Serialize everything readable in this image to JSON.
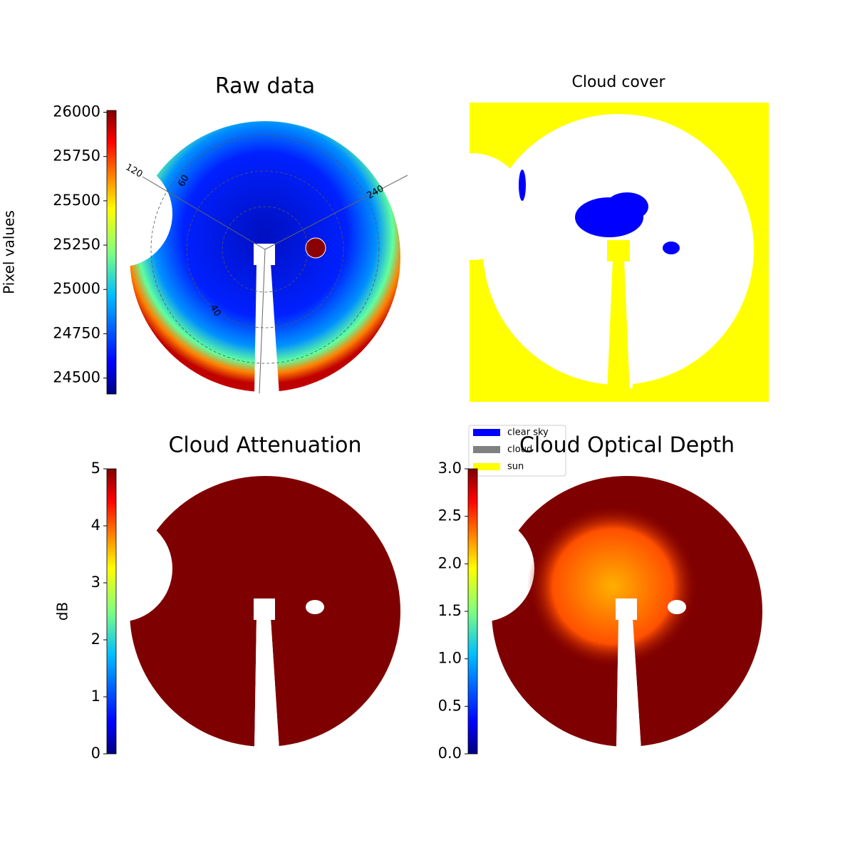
{
  "chart_data": [
    {
      "type": "image",
      "title": "Raw data",
      "colorbar_label": "Pixel values",
      "ylim": [
        24410,
        26010
      ],
      "yticks": [
        24500,
        24750,
        25000,
        25250,
        25500,
        25750,
        26000
      ],
      "annotations": [
        "120",
        "60",
        "240",
        "40"
      ]
    },
    {
      "type": "image",
      "title": "Cloud cover",
      "series": [
        {
          "name": "clear sky",
          "color": "#0000ff"
        },
        {
          "name": "cloud",
          "color": "#808080"
        },
        {
          "name": "sun",
          "color": "#ffff00"
        }
      ]
    },
    {
      "type": "image",
      "title": "Cloud Attenuation",
      "colorbar_label": "dB",
      "ylim": [
        0,
        5
      ],
      "yticks": [
        0,
        1,
        2,
        3,
        4,
        5
      ]
    },
    {
      "type": "image",
      "title": "Cloud Optical Depth",
      "ylim": [
        0,
        3
      ],
      "yticks": [
        {
          "value": 0,
          "label": "0.0"
        },
        {
          "value": 0.5,
          "label": "0.5"
        },
        {
          "value": 1,
          "label": "1.0"
        },
        {
          "value": 1.5,
          "label": "1.5"
        },
        {
          "value": 2,
          "label": "2.0"
        },
        {
          "value": 2.5,
          "label": "2.5"
        },
        {
          "value": 3,
          "label": "3.0"
        }
      ]
    }
  ]
}
